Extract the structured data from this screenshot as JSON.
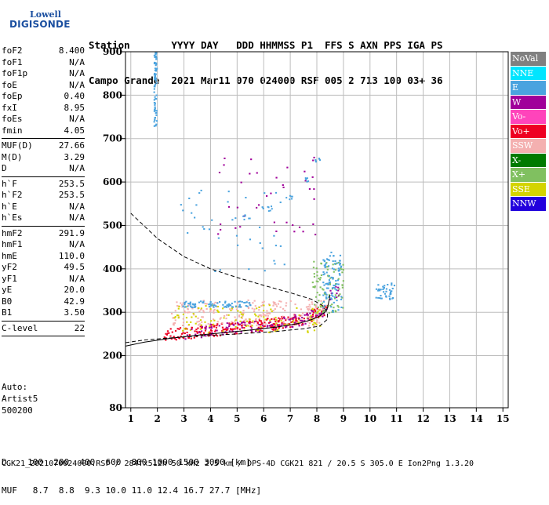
{
  "logo": {
    "top": "Lowell",
    "bottom": "DIGISONDE"
  },
  "header": {
    "line1": "Station       YYYY DAY   DDD HHMMSS P1  FFS S AXN PPS IGA PS",
    "line2": "Campo Grande  2021 Mar11 070 024000 RSF 005 2 713 100 03+ 36"
  },
  "params": [
    {
      "name": "foF2",
      "value": "8.400"
    },
    {
      "name": "foF1",
      "value": "N/A"
    },
    {
      "name": "foF1p",
      "value": "N/A"
    },
    {
      "name": "foE",
      "value": "N/A"
    },
    {
      "name": "foEp",
      "value": "0.40"
    },
    {
      "name": "fxI",
      "value": "8.95"
    },
    {
      "name": "foEs",
      "value": "N/A"
    },
    {
      "name": "fmin",
      "value": "4.05"
    },
    {
      "sep": true
    },
    {
      "name": "MUF(D)",
      "value": "27.66"
    },
    {
      "name": "M(D)",
      "value": "3.29"
    },
    {
      "name": "D",
      "value": "N/A"
    },
    {
      "sep": true
    },
    {
      "name": "h`F",
      "value": "253.5"
    },
    {
      "name": "h`F2",
      "value": "253.5"
    },
    {
      "name": "h`E",
      "value": "N/A"
    },
    {
      "name": "h`Es",
      "value": "N/A"
    },
    {
      "sep": true
    },
    {
      "name": "hmF2",
      "value": "291.9"
    },
    {
      "name": "hmF1",
      "value": "N/A"
    },
    {
      "name": "hmE",
      "value": "110.0"
    },
    {
      "name": "yF2",
      "value": "49.5"
    },
    {
      "name": "yF1",
      "value": "N/A"
    },
    {
      "name": "yE",
      "value": "20.0"
    },
    {
      "name": "B0",
      "value": "42.9"
    },
    {
      "name": "B1",
      "value": "3.50"
    },
    {
      "sep": true
    },
    {
      "name": "C-level",
      "value": "22"
    },
    {
      "sep": true
    }
  ],
  "auto": {
    "line1": "Auto:",
    "line2": "Artist5",
    "line3": "500200"
  },
  "legend": [
    {
      "label": "NoVal",
      "color": "#808080"
    },
    {
      "label": "NNE",
      "color": "#00e5ff"
    },
    {
      "label": "E",
      "color": "#4aa3df"
    },
    {
      "label": "W",
      "color": "#a0009a"
    },
    {
      "label": "Vo-",
      "color": "#ff44bb"
    },
    {
      "label": "Vo+",
      "color": "#ee0022"
    },
    {
      "label": "SSW",
      "color": "#f4b0b0"
    },
    {
      "label": "X-",
      "color": "#007a00"
    },
    {
      "label": "X+",
      "color": "#80c060"
    },
    {
      "label": "SSE",
      "color": "#d4d400"
    },
    {
      "label": "NNW",
      "color": "#2200dd"
    }
  ],
  "chart_data": {
    "type": "scatter",
    "xlim": [
      0.8,
      15.2
    ],
    "ylim": [
      80,
      900
    ],
    "x_ticks": [
      1,
      2,
      3,
      4,
      5,
      6,
      7,
      8,
      9,
      10,
      11,
      12,
      13,
      14,
      15
    ],
    "y_ticks": [
      80,
      200,
      300,
      400,
      500,
      600,
      700,
      800,
      900
    ],
    "grid": true,
    "profile_curve": {
      "x": [
        1.0,
        2.0,
        3.0,
        4.0,
        5.0,
        6.0,
        7.0,
        7.8,
        8.2,
        8.4,
        8.4,
        8.1,
        7.5,
        6.5,
        5.0,
        3.5,
        2.5,
        1.5,
        0.8
      ],
      "y": [
        528,
        470,
        428,
        400,
        380,
        362,
        345,
        330,
        316,
        300,
        284,
        268,
        262,
        256,
        250,
        245,
        241,
        236,
        230
      ]
    },
    "trace_curve": {
      "x": [
        0.8,
        1.5,
        2.5,
        3.5,
        4.5,
        5.5,
        6.5,
        7.3,
        7.8,
        8.1,
        8.3,
        8.4,
        8.45,
        8.5
      ],
      "y": [
        222,
        231,
        240,
        247,
        253,
        259,
        266,
        274,
        283,
        291,
        300,
        310,
        325,
        340
      ]
    },
    "echo_clusters": [
      {
        "color": "#ee0022",
        "x0": 2.2,
        "x1": 8.4,
        "y0": 238,
        "y1": 340,
        "follow": true,
        "n": 260
      },
      {
        "color": "#f4b0b0",
        "x0": 2.5,
        "x1": 8.3,
        "y0": 270,
        "y1": 330,
        "follow": false,
        "n": 220
      },
      {
        "color": "#d4d400",
        "x0": 2.6,
        "x1": 8.3,
        "y0": 255,
        "y1": 320,
        "follow": false,
        "n": 120
      },
      {
        "color": "#4aa3df",
        "x0": 2.9,
        "x1": 5.5,
        "y0": 313,
        "y1": 327,
        "follow": false,
        "n": 80
      },
      {
        "color": "#a0009a",
        "x0": 3.0,
        "x1": 8.8,
        "y0": 248,
        "y1": 420,
        "follow": true,
        "n": 120
      },
      {
        "color": "#80c060",
        "x0": 7.8,
        "x1": 9.0,
        "y0": 300,
        "y1": 420,
        "follow": false,
        "n": 90
      },
      {
        "color": "#4aa3df",
        "x0": 8.2,
        "x1": 8.9,
        "y0": 300,
        "y1": 440,
        "follow": false,
        "n": 90
      },
      {
        "color": "#4aa3df",
        "x0": 10.2,
        "x1": 10.9,
        "y0": 330,
        "y1": 370,
        "follow": false,
        "n": 40
      },
      {
        "color": "#4aa3df",
        "x0": 1.85,
        "x1": 1.95,
        "y0": 730,
        "y1": 900,
        "follow": false,
        "n": 70
      },
      {
        "color": "#4aa3df",
        "x0": 2.8,
        "x1": 6.8,
        "y0": 390,
        "y1": 590,
        "follow": false,
        "n": 40
      },
      {
        "color": "#a0009a",
        "x0": 4.0,
        "x1": 8.0,
        "y0": 480,
        "y1": 660,
        "follow": false,
        "n": 40
      }
    ],
    "second_hop": {
      "x": [
        5.2,
        6.0,
        6.8,
        7.5,
        7.9
      ],
      "y": [
        520,
        540,
        565,
        605,
        650
      ]
    }
  },
  "footer": {
    "line1": "D    100  200  400  600  800 1000 1500 3000 [km]",
    "line2": "MUF   8.7  8.8  9.3 10.0 11.0 12.4 16.7 27.7 [MHz]",
    "file": "CGK21_2021070024000.RSF / 284fx512h 50 kHz 2.5 km / DPS-4D CGK21 821 / 20.5 S 305.0 E Ion2Png 1.3.20"
  }
}
